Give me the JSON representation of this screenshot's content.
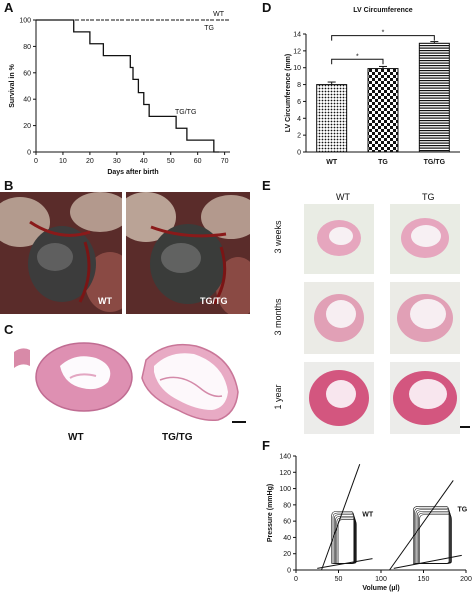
{
  "panels": {
    "A": {
      "letter": "A",
      "chart_data": {
        "type": "line",
        "xlabel": "Days after birth",
        "ylabel": "Survival in %",
        "xlim": [
          0,
          72
        ],
        "ylim": [
          0,
          100
        ],
        "xticks": [
          0,
          10,
          20,
          30,
          40,
          50,
          60,
          70
        ],
        "yticks": [
          0,
          20,
          40,
          60,
          80,
          100
        ],
        "series": [
          {
            "name": "WT",
            "style": "dashed",
            "x": [
              0,
              72
            ],
            "y": [
              100,
              100
            ]
          },
          {
            "name": "TG",
            "style": "dotted",
            "x": [
              0,
              72
            ],
            "y": [
              100,
              100
            ]
          },
          {
            "name": "TG/TG",
            "style": "solid-step",
            "x": [
              0,
              14,
              14,
              20,
              20,
              25,
              25,
              27,
              27,
              35,
              35,
              36,
              36,
              38,
              38,
              40,
              40,
              42,
              42,
              44,
              44,
              52,
              52,
              54,
              54,
              56,
              56,
              66,
              66,
              68
            ],
            "y": [
              100,
              100,
              91,
              91,
              82,
              82,
              73,
              73,
              73,
              73,
              64,
              64,
              55,
              55,
              45,
              45,
              36,
              36,
              27,
              27,
              27,
              27,
              18,
              18,
              18,
              18,
              9,
              9,
              0,
              0
            ]
          }
        ]
      }
    },
    "D": {
      "letter": "D",
      "chart_data": {
        "type": "bar",
        "title": "LV Circumference",
        "ylabel": "LV Circumference (mm)",
        "categories": [
          "WT",
          "TG",
          "TG/TG"
        ],
        "values": [
          8.0,
          9.9,
          12.9
        ],
        "errors": [
          0.3,
          0.25,
          0.2
        ],
        "ylim": [
          0,
          14
        ],
        "yticks": [
          0,
          2,
          4,
          6,
          8,
          10,
          12,
          14
        ],
        "significance": [
          "*",
          "*"
        ]
      }
    },
    "B": {
      "letter": "B",
      "labels": [
        "WT",
        "TG/TG"
      ]
    },
    "C": {
      "letter": "C",
      "labels": [
        "WT",
        "TG/TG"
      ]
    },
    "E": {
      "letter": "E",
      "columns": [
        "WT",
        "TG"
      ],
      "rows": [
        "3 weeks",
        "3 months",
        "1 year"
      ]
    },
    "F": {
      "letter": "F",
      "chart_data": {
        "type": "line",
        "xlabel": "Volume (µl)",
        "ylabel": "Pressure (mmHg)",
        "xlim": [
          0,
          200
        ],
        "ylim": [
          0,
          140
        ],
        "xticks": [
          0,
          50,
          100,
          150,
          200
        ],
        "yticks": [
          0,
          20,
          40,
          60,
          80,
          100,
          120,
          140
        ],
        "series": [
          {
            "name": "WT",
            "loop": {
              "vmin": 42,
              "vmax": 68,
              "pmin": 8,
              "pmax": 72
            }
          },
          {
            "name": "TG",
            "loop": {
              "vmin": 138,
              "vmax": 180,
              "pmin": 8,
              "pmax": 78
            }
          }
        ]
      }
    }
  }
}
